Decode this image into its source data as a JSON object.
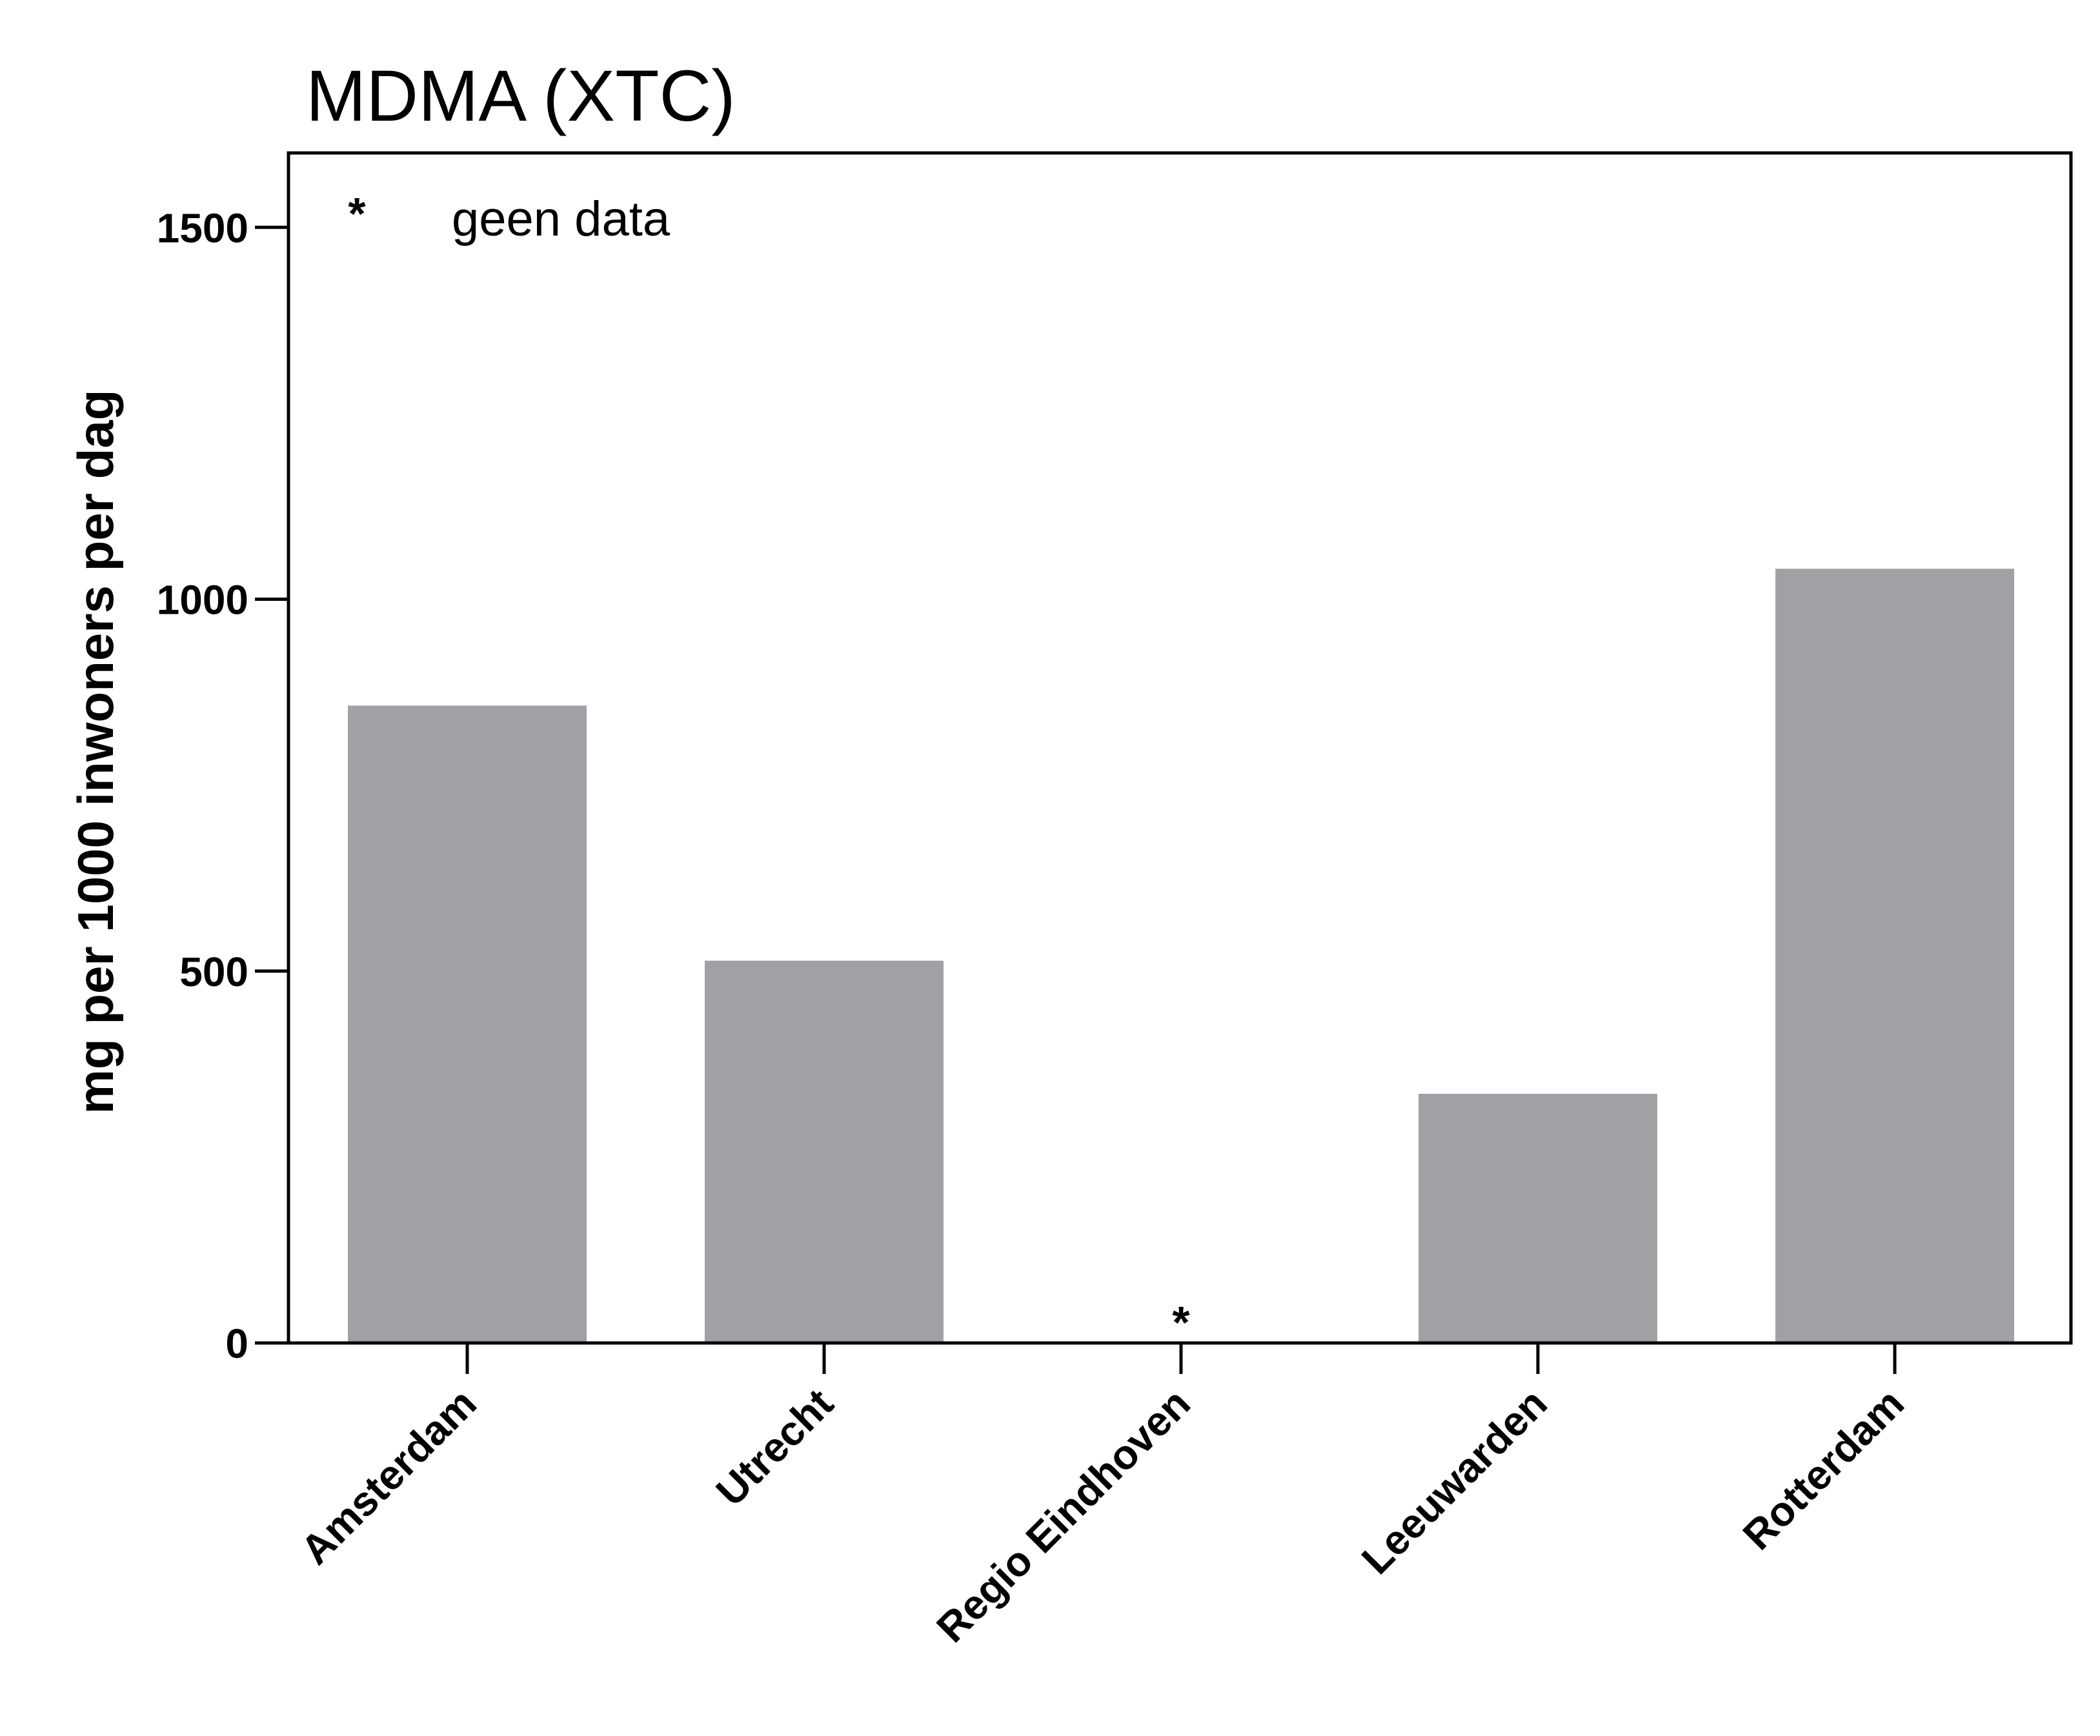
{
  "chart_data": {
    "type": "bar",
    "title": "MDMA (XTC)",
    "ylabel": "mg per 1000 inwoners per dag",
    "xlabel": "",
    "categories": [
      "Amsterdam",
      "Utrecht",
      "Regio Eindhoven",
      "Leeuwarden",
      "Rotterdam"
    ],
    "values": [
      857,
      514,
      null,
      335,
      1041
    ],
    "ylim": [
      0,
      1600
    ],
    "yticks": [
      "0",
      "500",
      "1000",
      "1500"
    ],
    "bar_color": "#a1a0a5",
    "grid": false,
    "legend": {
      "placement": "top-left",
      "symbol": "*",
      "text": "geen data"
    },
    "missing_marker": "*"
  }
}
